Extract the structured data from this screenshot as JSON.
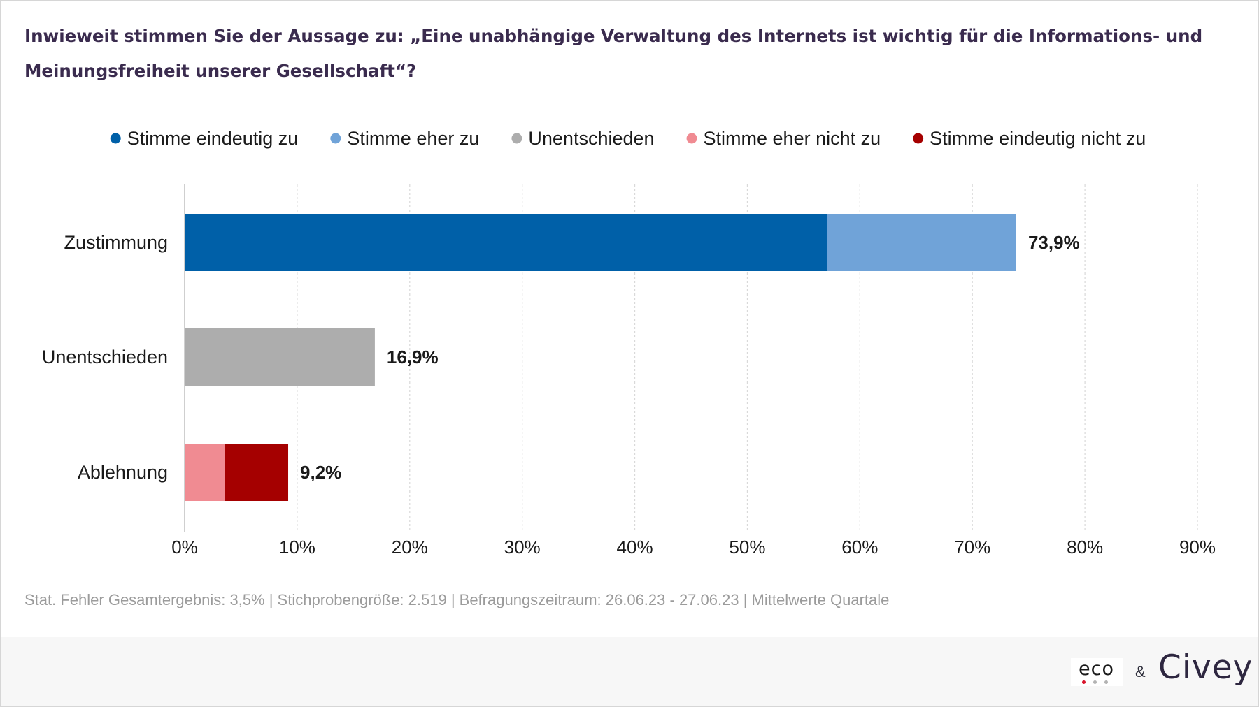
{
  "title": "Inwieweit stimmen Sie der Aussage zu: „Eine unabhängige Verwaltung des Internets ist wichtig für die Informations- und Meinungsfreiheit unserer Gesellschaft“?",
  "footnote": "Stat. Fehler Gesamtergebnis: 3,5% | Stichprobengröße: 2.519 | Befragungszeitraum: 26.06.23 - 27.06.23 | Mittelwerte Quartale",
  "logos": {
    "eco": "eco",
    "ampersand": "&",
    "civey": "Civey"
  },
  "colors": {
    "title": "#3a2b4e",
    "grid": "#d9d9d9",
    "axis": "#bfbfbf",
    "eco_dots": [
      "#d9142b",
      "#b3b3b3",
      "#b3b3b3"
    ]
  },
  "chart_data": {
    "type": "bar",
    "orientation": "horizontal",
    "stacked": true,
    "categories": [
      "Zustimmung",
      "Unentschieden",
      "Ablehnung"
    ],
    "series": [
      {
        "name": "Stimme eindeutig zu",
        "color": "#0060a8",
        "values": [
          57.1,
          null,
          null
        ]
      },
      {
        "name": "Stimme eher zu",
        "color": "#70a3d8",
        "values": [
          16.8,
          null,
          null
        ]
      },
      {
        "name": "Unentschieden",
        "color": "#adadad",
        "values": [
          null,
          16.9,
          null
        ]
      },
      {
        "name": "Stimme eher nicht zu",
        "color": "#f08b92",
        "values": [
          null,
          null,
          3.6
        ]
      },
      {
        "name": "Stimme eindeutig nicht zu",
        "color": "#a50000",
        "values": [
          null,
          null,
          5.6
        ]
      }
    ],
    "totals": [
      73.9,
      16.9,
      9.2
    ],
    "total_labels": [
      "73,9%",
      "16,9%",
      "9,2%"
    ],
    "xlim": [
      0,
      90
    ],
    "xticks": [
      0,
      10,
      20,
      30,
      40,
      50,
      60,
      70,
      80,
      90
    ],
    "xtick_labels": [
      "0%",
      "10%",
      "20%",
      "30%",
      "40%",
      "50%",
      "60%",
      "70%",
      "80%",
      "90%"
    ],
    "grid": "vertical dashed",
    "legend_position": "top"
  }
}
